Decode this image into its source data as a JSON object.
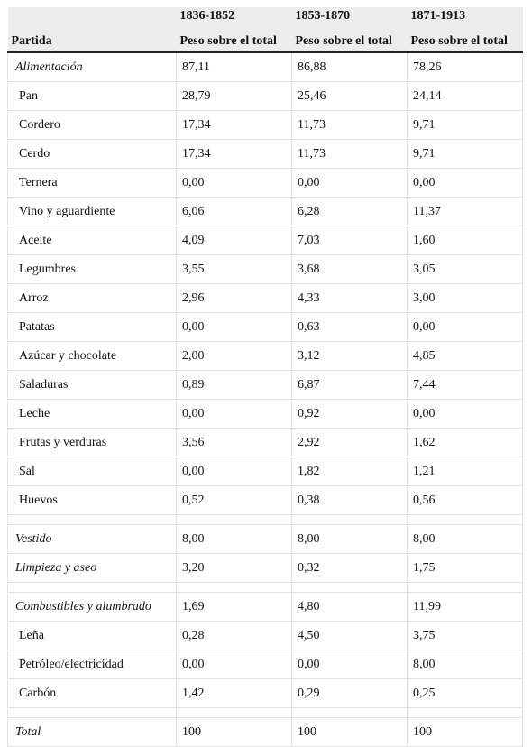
{
  "table": {
    "header": {
      "periods": [
        "1836-1852",
        "1853-1870",
        "1871-1913"
      ],
      "row_label": "Partida",
      "measures": [
        "Peso sobre el total",
        "Peso sobre el total",
        "Peso sobre el total"
      ]
    },
    "sections": [
      [
        {
          "label": "Alimentación",
          "values": [
            "87,11",
            "86,88",
            "78,26"
          ],
          "items": [
            {
              "label": "Pan",
              "values": [
                "28,79",
                "25,46",
                "24,14"
              ]
            },
            {
              "label": "Cordero",
              "values": [
                "17,34",
                "11,73",
                "9,71"
              ]
            },
            {
              "label": "Cerdo",
              "values": [
                "17,34",
                "11,73",
                "9,71"
              ]
            },
            {
              "label": "Ternera",
              "values": [
                "0,00",
                "0,00",
                "0,00"
              ]
            },
            {
              "label": "Vino y aguardiente",
              "values": [
                "6,06",
                "6,28",
                "11,37"
              ]
            },
            {
              "label": "Aceite",
              "values": [
                "4,09",
                "7,03",
                "1,60"
              ]
            },
            {
              "label": "Legumbres",
              "values": [
                "3,55",
                "3,68",
                "3,05"
              ]
            },
            {
              "label": "Arroz",
              "values": [
                "2,96",
                "4,33",
                "3,00"
              ]
            },
            {
              "label": "Patatas",
              "values": [
                "0,00",
                "0,63",
                "0,00"
              ]
            },
            {
              "label": "Azúcar y chocolate",
              "values": [
                "2,00",
                "3,12",
                "4,85"
              ]
            },
            {
              "label": "Saladuras",
              "values": [
                "0,89",
                "6,87",
                "7,44"
              ]
            },
            {
              "label": "Leche",
              "values": [
                "0,00",
                "0,92",
                "0,00"
              ]
            },
            {
              "label": "Frutas y verduras",
              "values": [
                "3,56",
                "2,92",
                "1,62"
              ]
            },
            {
              "label": "Sal",
              "values": [
                "0,00",
                "1,82",
                "1,21"
              ]
            },
            {
              "label": "Huevos",
              "values": [
                "0,52",
                "0,38",
                "0,56"
              ]
            }
          ]
        }
      ],
      [
        {
          "label": "Vestido",
          "values": [
            "8,00",
            "8,00",
            "8,00"
          ],
          "items": []
        },
        {
          "label": "Limpieza y aseo",
          "values": [
            "3,20",
            "0,32",
            "1,75"
          ],
          "items": []
        }
      ],
      [
        {
          "label": "Combustibles y alumbrado",
          "values": [
            "1,69",
            "4,80",
            "11,99"
          ],
          "items": [
            {
              "label": "Leña",
              "values": [
                "0,28",
                "4,50",
                "3,75"
              ]
            },
            {
              "label": "Petróleo/electricidad",
              "values": [
                "0,00",
                "0,00",
                "8,00"
              ]
            },
            {
              "label": "Carbón",
              "values": [
                "1,42",
                "0,29",
                "0,25"
              ]
            }
          ]
        }
      ],
      [
        {
          "label": "Total",
          "values": [
            "100",
            "100",
            "100"
          ],
          "items": []
        }
      ]
    ]
  }
}
